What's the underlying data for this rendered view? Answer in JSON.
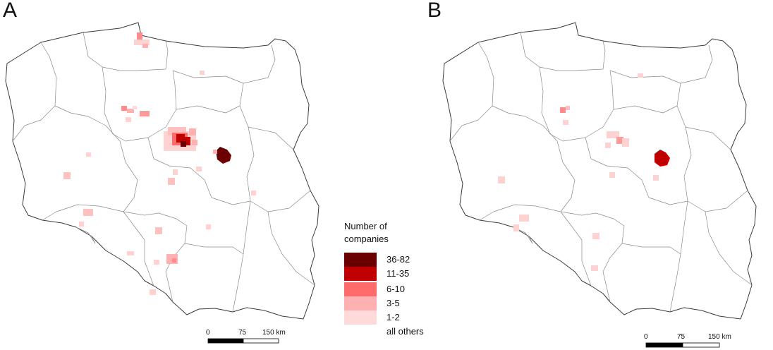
{
  "panels": [
    {
      "label": "A"
    },
    {
      "label": "B"
    }
  ],
  "legend": {
    "title_line1": "Number of",
    "title_line2": "companies",
    "classes": [
      {
        "label": "36-82",
        "color": "#6b0000"
      },
      {
        "label": "11-35",
        "color": "#c00000"
      },
      {
        "label": "6-10",
        "color": "#ff6b6b"
      },
      {
        "label": "3-5",
        "color": "#ffb0b0"
      },
      {
        "label": "1-2",
        "color": "#ffdada"
      },
      {
        "label": "all others",
        "color": "#ffffff"
      }
    ]
  },
  "scale_bar": {
    "ticks": [
      "0",
      "75",
      "150 km"
    ]
  }
}
